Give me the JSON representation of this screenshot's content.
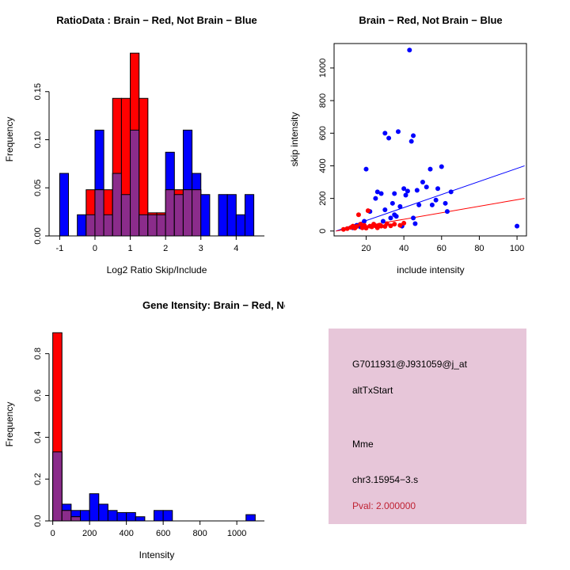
{
  "colors": {
    "red": "#FF0000",
    "blue": "#0000FF",
    "overlap": "#8B2C8B",
    "axis": "#000000",
    "info_bg": "#E7C6D9",
    "pval_text": "#BF2233"
  },
  "chart_data": [
    {
      "type": "histogram",
      "title": "RatioData : Brain − Red, Not Brain − Blue",
      "xlabel": "Log2 Ratio Skip/Include",
      "ylabel": "Frequency",
      "bin_start": -1.0,
      "bin_width": 0.25,
      "xlim": [
        -1.3,
        4.8
      ],
      "ylim": [
        0,
        0.2
      ],
      "xticks": [
        -1,
        0,
        1,
        2,
        3,
        4
      ],
      "yticks": [
        0,
        0.05,
        0.1,
        0.15
      ],
      "ytick_labels": [
        "0.00",
        "0.05",
        "0.10",
        "0.15"
      ],
      "series": [
        {
          "name": "Not Brain",
          "color": "blue",
          "values": [
            0.065,
            0,
            0.022,
            0.022,
            0.11,
            0.022,
            0.065,
            0.043,
            0.11,
            0.022,
            0.022,
            0.022,
            0.087,
            0.043,
            0.11,
            0.065,
            0.043,
            0,
            0.043,
            0.043,
            0.022,
            0.043
          ]
        },
        {
          "name": "Brain",
          "color": "red",
          "values": [
            0,
            0,
            0,
            0.048,
            0.048,
            0.048,
            0.143,
            0.143,
            0.19,
            0.143,
            0.024,
            0.024,
            0.048,
            0.048,
            0.048,
            0.048,
            0,
            0,
            0,
            0,
            0,
            0
          ]
        }
      ]
    },
    {
      "type": "scatter",
      "title": "Brain − Red, Not Brain − Blue",
      "xlabel": "include intensity",
      "ylabel": "skip intensity",
      "xlim": [
        3,
        105
      ],
      "ylim": [
        -30,
        1150
      ],
      "xticks": [
        20,
        40,
        60,
        80,
        100
      ],
      "yticks": [
        0,
        200,
        400,
        600,
        800,
        1000
      ],
      "series": [
        {
          "name": "Not Brain",
          "color": "blue",
          "line": {
            "x1": 4,
            "y1": 0,
            "x2": 104,
            "y2": 400
          },
          "points": [
            [
              13,
              20
            ],
            [
              15,
              35
            ],
            [
              17,
              25
            ],
            [
              19,
              60
            ],
            [
              20,
              380
            ],
            [
              22,
              120
            ],
            [
              24,
              35
            ],
            [
              25,
              200
            ],
            [
              26,
              240
            ],
            [
              28,
              230
            ],
            [
              29,
              60
            ],
            [
              30,
              130
            ],
            [
              30,
              600
            ],
            [
              32,
              570
            ],
            [
              33,
              80
            ],
            [
              34,
              170
            ],
            [
              35,
              100
            ],
            [
              35,
              230
            ],
            [
              36,
              90
            ],
            [
              37,
              610
            ],
            [
              38,
              150
            ],
            [
              39,
              30
            ],
            [
              40,
              260
            ],
            [
              41,
              220
            ],
            [
              42,
              245
            ],
            [
              43,
              1110
            ],
            [
              44,
              550
            ],
            [
              45,
              585
            ],
            [
              45,
              80
            ],
            [
              46,
              45
            ],
            [
              47,
              250
            ],
            [
              48,
              160
            ],
            [
              50,
              300
            ],
            [
              52,
              270
            ],
            [
              54,
              380
            ],
            [
              55,
              160
            ],
            [
              57,
              190
            ],
            [
              58,
              260
            ],
            [
              60,
              395
            ],
            [
              62,
              170
            ],
            [
              63,
              120
            ],
            [
              65,
              240
            ],
            [
              100,
              30
            ]
          ]
        },
        {
          "name": "Brain",
          "color": "red",
          "line": {
            "x1": 4,
            "y1": 0,
            "x2": 104,
            "y2": 200
          },
          "points": [
            [
              8,
              10
            ],
            [
              10,
              15
            ],
            [
              12,
              22
            ],
            [
              13,
              30
            ],
            [
              14,
              18
            ],
            [
              15,
              28
            ],
            [
              16,
              100
            ],
            [
              17,
              42
            ],
            [
              18,
              20
            ],
            [
              19,
              35
            ],
            [
              20,
              18
            ],
            [
              21,
              125
            ],
            [
              22,
              30
            ],
            [
              23,
              26
            ],
            [
              24,
              42
            ],
            [
              25,
              32
            ],
            [
              26,
              20
            ],
            [
              27,
              36
            ],
            [
              28,
              30
            ],
            [
              30,
              28
            ],
            [
              31,
              45
            ],
            [
              33,
              32
            ],
            [
              35,
              42
            ],
            [
              38,
              35
            ],
            [
              40,
              48
            ]
          ]
        }
      ]
    },
    {
      "type": "histogram",
      "title": "Gene Itensity: Brain − Red, Not Brain − Blue",
      "xlabel": "Intensity",
      "ylabel": "Frequency",
      "bin_start": 0,
      "bin_width": 50,
      "xlim": [
        -20,
        1150
      ],
      "ylim": [
        0,
        0.92
      ],
      "xticks": [
        0,
        200,
        400,
        600,
        800,
        1000
      ],
      "yticks": [
        0,
        0.2,
        0.4,
        0.6,
        0.8
      ],
      "ytick_labels": [
        "0.0",
        "0.2",
        "0.4",
        "0.6",
        "0.8"
      ],
      "series": [
        {
          "name": "Not Brain",
          "color": "blue",
          "values": [
            0.33,
            0.08,
            0.05,
            0.05,
            0.13,
            0.08,
            0.05,
            0.04,
            0.04,
            0.02,
            0,
            0.05,
            0.05,
            0,
            0,
            0,
            0,
            0,
            0,
            0,
            0,
            0.03
          ]
        },
        {
          "name": "Brain",
          "color": "red",
          "values": [
            0.9,
            0.05,
            0.02,
            0,
            0,
            0,
            0,
            0,
            0,
            0,
            0,
            0,
            0,
            0,
            0,
            0,
            0,
            0,
            0,
            0,
            0,
            0
          ]
        }
      ]
    },
    {
      "type": "text-panel",
      "lines": [
        "G7011931@J931059@j_at",
        "altTxStart",
        "Mme",
        "chr3.15954−3.s",
        "Pval: 2.000000"
      ]
    }
  ]
}
